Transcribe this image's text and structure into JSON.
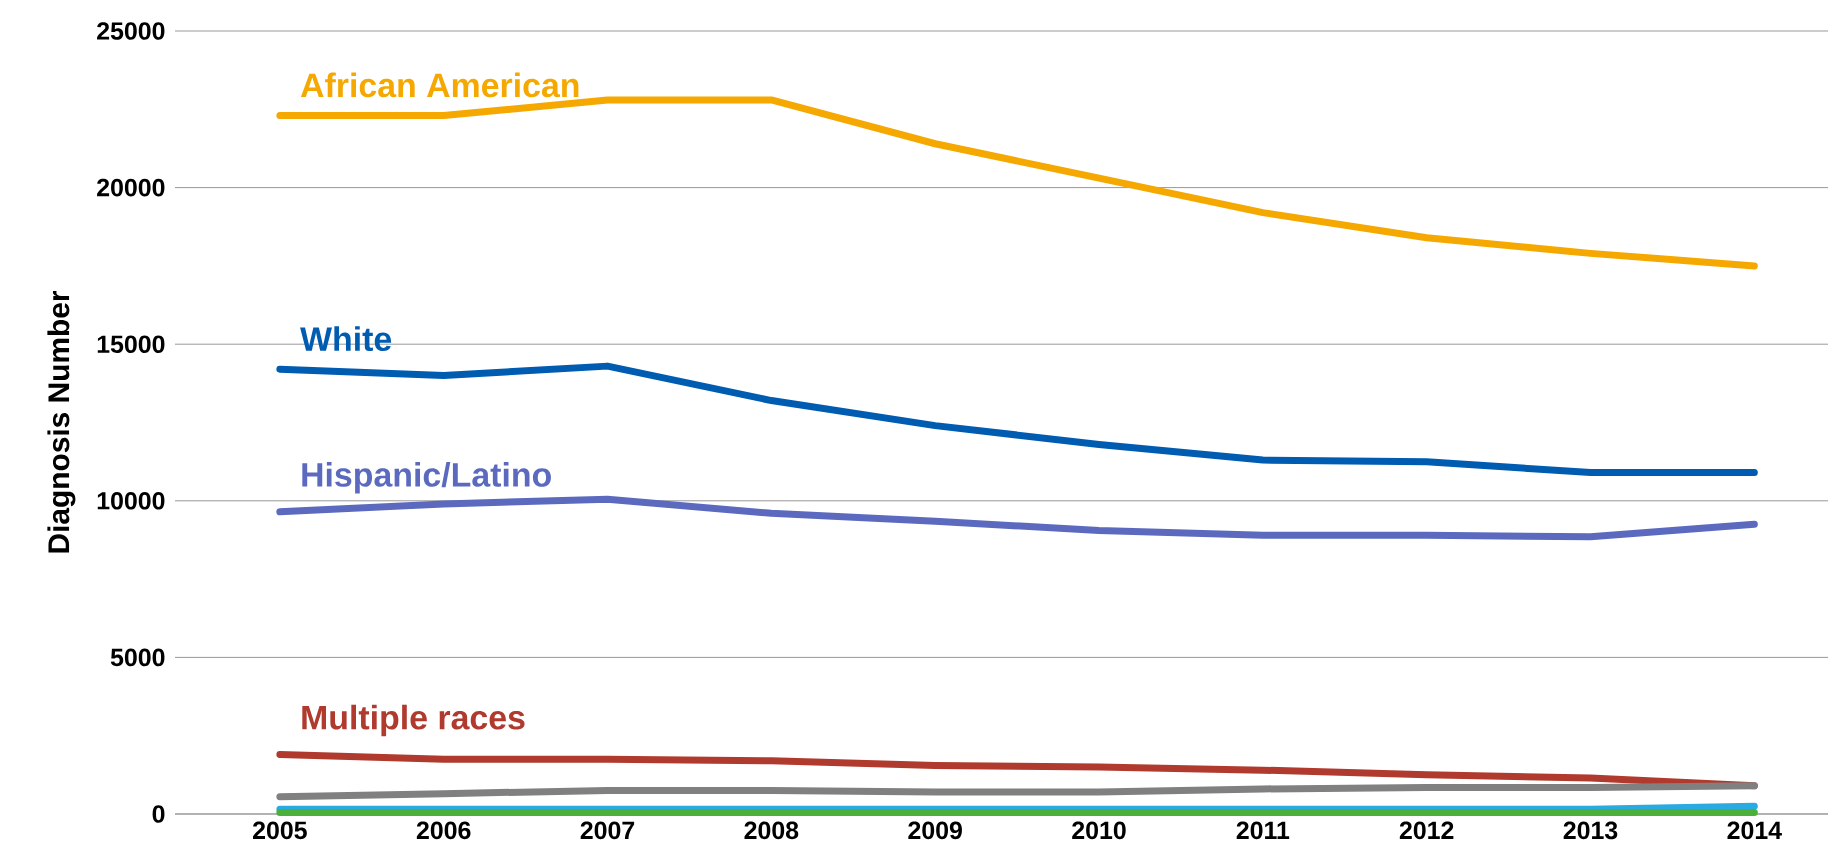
{
  "chart_data": {
    "type": "line",
    "ylabel": "Diagnosis Number",
    "categories": [
      "2005",
      "2006",
      "2007",
      "2008",
      "2009",
      "2010",
      "2011",
      "2012",
      "2013",
      "2014"
    ],
    "series": [
      {
        "name": "African American",
        "color": "#f5a800",
        "values": [
          22300,
          22300,
          22800,
          22800,
          21400,
          20300,
          19200,
          18400,
          17900,
          17500
        ]
      },
      {
        "name": "White",
        "color": "#005cb0",
        "values": [
          14200,
          14000,
          14300,
          13200,
          12400,
          11800,
          11300,
          11250,
          10900,
          10900
        ]
      },
      {
        "name": "Hispanic/Latino",
        "color": "#5b6abf",
        "values": [
          9650,
          9900,
          10050,
          9600,
          9350,
          9050,
          8900,
          8900,
          8850,
          9250
        ]
      },
      {
        "name": "Multiple races",
        "color": "#b03a2e",
        "values": [
          1900,
          1750,
          1750,
          1700,
          1550,
          1500,
          1400,
          1250,
          1150,
          900
        ]
      },
      {
        "color": "#808080",
        "values": [
          550,
          650,
          750,
          750,
          700,
          700,
          800,
          850,
          850,
          900
        ]
      },
      {
        "color": "#29abe2",
        "values": [
          150,
          150,
          150,
          150,
          150,
          150,
          150,
          150,
          150,
          250
        ]
      },
      {
        "color": "#4caf3a",
        "values": [
          50,
          50,
          50,
          50,
          50,
          50,
          50,
          50,
          50,
          50
        ]
      }
    ],
    "ylim": [
      0,
      25000
    ],
    "yticks": [
      0,
      5000,
      10000,
      15000,
      20000,
      25000
    ],
    "grid": "y",
    "marker": "none",
    "line_style": "solid"
  }
}
